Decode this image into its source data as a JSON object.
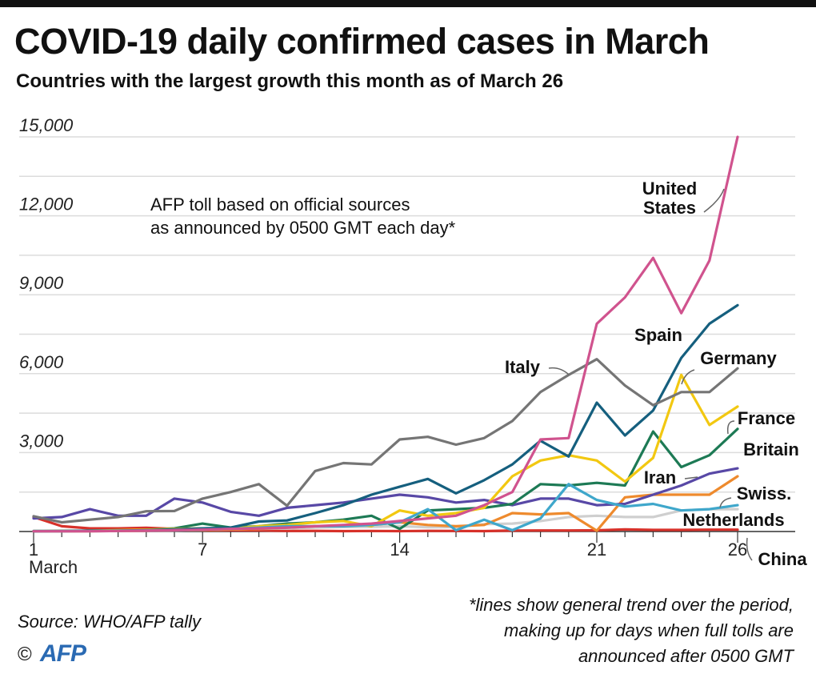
{
  "header": {
    "title": "COVID-19 daily confirmed cases in March",
    "subtitle": "Countries with the largest growth this month as of March 26"
  },
  "annotation": {
    "line1": "AFP toll based on official sources",
    "line2": "as announced by 0500 GMT each day*"
  },
  "footer": {
    "source": "Source: WHO/AFP tally",
    "copyright_symbol": "©",
    "logo_text": "AFP",
    "footnote_lines": [
      "*lines show general trend over the period,",
      "making up for days when full tolls are",
      "announced after 0500 GMT"
    ]
  },
  "chart_data": {
    "type": "line",
    "title": "COVID-19 daily confirmed cases in March",
    "subtitle": "Countries with the largest growth this month as of March 26",
    "xlabel": "",
    "ylabel": "",
    "x": [
      1,
      2,
      3,
      4,
      5,
      6,
      7,
      8,
      9,
      10,
      11,
      12,
      13,
      14,
      15,
      16,
      17,
      18,
      19,
      20,
      21,
      22,
      23,
      24,
      25,
      26
    ],
    "x_tick_values": [
      1,
      7,
      14,
      21,
      26
    ],
    "x_tick_labels": [
      "1",
      "7",
      "14",
      "21",
      "26"
    ],
    "x_subtitle": "March",
    "xlim": [
      1,
      26
    ],
    "y_ticks": [
      3000,
      6000,
      9000,
      12000,
      15000
    ],
    "y_tick_labels": [
      "3,000",
      "6,000",
      "9,000",
      "12,000",
      "15,000"
    ],
    "ylim": [
      0,
      15000
    ],
    "grid": "horizontal",
    "legend": "direct labels",
    "series": [
      {
        "name": "China",
        "color": "#d7312a",
        "values": [
          550,
          200,
          120,
          120,
          140,
          100,
          45,
          45,
          40,
          20,
          25,
          15,
          20,
          15,
          25,
          20,
          15,
          35,
          40,
          40,
          45,
          80,
          60,
          60,
          70,
          70
        ]
      },
      {
        "name": "Netherlands",
        "color": "#cfcfcf",
        "values": [
          5,
          5,
          10,
          20,
          30,
          40,
          60,
          80,
          100,
          120,
          150,
          170,
          180,
          200,
          160,
          170,
          280,
          300,
          400,
          550,
          600,
          550,
          550,
          800,
          850,
          850
        ]
      },
      {
        "name": "Swiss.",
        "color": "#ee8a2d",
        "values": [
          10,
          10,
          15,
          20,
          30,
          50,
          60,
          80,
          100,
          150,
          200,
          220,
          250,
          350,
          250,
          200,
          250,
          700,
          650,
          700,
          30,
          1300,
          1400,
          1400,
          1400,
          2100
        ]
      },
      {
        "name": "Iran",
        "color": "#5848a6",
        "values": [
          500,
          550,
          850,
          600,
          600,
          1250,
          1100,
          750,
          600,
          900,
          1000,
          1100,
          1250,
          1400,
          1300,
          1100,
          1200,
          1000,
          1250,
          1250,
          1000,
          1050,
          1400,
          1750,
          2200,
          2400
        ]
      },
      {
        "name": "Britain",
        "color": "#1d7a55",
        "values": [
          20,
          20,
          30,
          50,
          60,
          120,
          300,
          150,
          200,
          300,
          350,
          450,
          600,
          100,
          800,
          850,
          900,
          1050,
          1800,
          1750,
          1850,
          1750,
          3800,
          2450,
          2900,
          3900
        ]
      },
      {
        "name": "France",
        "color": "#f2c811",
        "values": [
          10,
          20,
          30,
          50,
          70,
          100,
          120,
          100,
          200,
          250,
          350,
          400,
          200,
          800,
          600,
          700,
          900,
          2100,
          2700,
          2900,
          2700,
          1900,
          2800,
          5950,
          4050,
          4750
        ]
      },
      {
        "name": "Spain",
        "color": "#155f7e",
        "values": [
          10,
          20,
          30,
          30,
          50,
          80,
          120,
          150,
          380,
          420,
          700,
          1000,
          1400,
          1700,
          2000,
          1450,
          1950,
          2550,
          3450,
          2850,
          4900,
          3650,
          4600,
          6600,
          7900,
          8600
        ]
      },
      {
        "name": "Germany",
        "color": "#3fa7cb",
        "values": [
          10,
          10,
          20,
          30,
          40,
          50,
          70,
          100,
          150,
          200,
          200,
          200,
          250,
          350,
          850,
          50,
          450,
          50,
          500,
          1800,
          1200,
          950,
          1050,
          800,
          850,
          1000
        ]
      },
      {
        "name": "Italy",
        "color": "#757575",
        "values": [
          580,
          350,
          450,
          550,
          770,
          780,
          1250,
          1500,
          1800,
          980,
          2300,
          2600,
          2550,
          3500,
          3600,
          3300,
          3550,
          4200,
          5300,
          5950,
          6550,
          5550,
          4800,
          5300,
          5300,
          6200
        ]
      },
      {
        "name": "United States",
        "color": "#d0538e",
        "values": [
          10,
          10,
          10,
          20,
          30,
          50,
          70,
          100,
          120,
          150,
          200,
          250,
          300,
          400,
          500,
          600,
          1000,
          1500,
          3500,
          3550,
          7900,
          8900,
          10400,
          8300,
          10300,
          15000
        ]
      }
    ],
    "series_label_lines": {
      "United States": [
        "United",
        "States"
      ]
    }
  }
}
